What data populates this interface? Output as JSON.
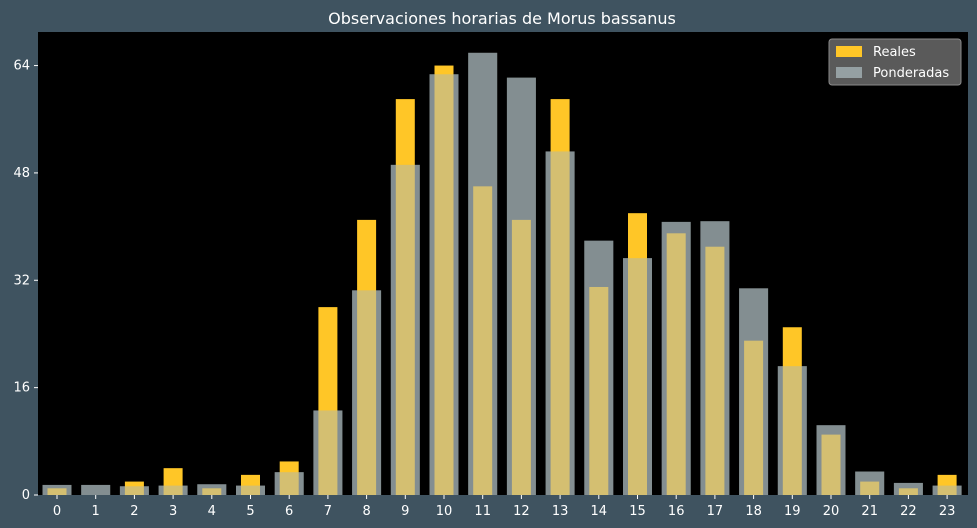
{
  "chart_data": {
    "type": "bar",
    "title": "Observaciones horarias de Morus bassanus",
    "xlabel": "",
    "ylabel": "",
    "categories": [
      "0",
      "1",
      "2",
      "3",
      "4",
      "5",
      "6",
      "7",
      "8",
      "9",
      "10",
      "11",
      "12",
      "13",
      "14",
      "15",
      "16",
      "17",
      "18",
      "19",
      "20",
      "21",
      "22",
      "23"
    ],
    "series": [
      {
        "name": "Reales",
        "color": "#ffc627",
        "values": [
          1,
          0,
          2,
          4,
          1,
          3,
          5,
          28,
          41,
          59,
          64,
          46,
          41,
          59,
          31,
          42,
          39,
          37,
          23,
          25,
          9,
          2,
          1,
          3
        ]
      },
      {
        "name": "Ponderadas",
        "color": "#aab8bc",
        "values": [
          1.5,
          1.5,
          1.3,
          1.4,
          1.6,
          1.4,
          3.4,
          12.6,
          30.5,
          49.2,
          62.7,
          65.9,
          62.2,
          51.2,
          37.9,
          35.3,
          40.7,
          40.8,
          30.8,
          19.2,
          10.4,
          3.5,
          1.8,
          1.4
        ]
      }
    ],
    "yticks": [
      0,
      16,
      32,
      48,
      64
    ],
    "ylim": [
      0,
      69
    ],
    "grid": false,
    "legend_position": "top-right",
    "background": "#000000",
    "figure_background": "#3f5360"
  }
}
